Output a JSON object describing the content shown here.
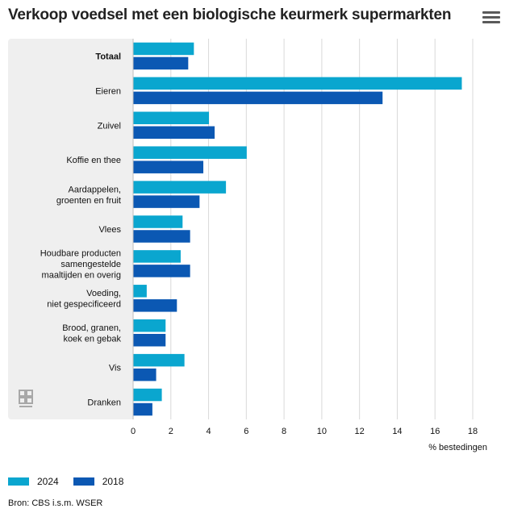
{
  "header": {
    "title": "Verkoop voedsel met een biologische keurmerk supermarkten",
    "menu_icon": "hamburger-menu-icon"
  },
  "colors": {
    "series_2024": "#0aa6cf",
    "series_2018": "#0b58b3",
    "grid": "#d9d9d9",
    "panel": "#efefef"
  },
  "chart_data": {
    "type": "bar",
    "orientation": "horizontal",
    "categories": [
      [
        "Totaal"
      ],
      [
        "Eieren"
      ],
      [
        "Zuivel"
      ],
      [
        "Koffie en thee"
      ],
      [
        "Aardappelen,",
        "groenten en fruit"
      ],
      [
        "Vlees"
      ],
      [
        "Houdbare producten",
        "samengestelde",
        "maaltijden en overig"
      ],
      [
        "Voeding,",
        "niet gespecificeerd"
      ],
      [
        "Brood, granen,",
        "koek en gebak"
      ],
      [
        "Vis"
      ],
      [
        "Dranken"
      ]
    ],
    "bold_categories": [
      0
    ],
    "series": [
      {
        "name": "2024",
        "values": [
          3.2,
          17.4,
          4.0,
          6.0,
          4.9,
          2.6,
          2.5,
          0.7,
          1.7,
          2.7,
          1.5
        ]
      },
      {
        "name": "2018",
        "values": [
          2.9,
          13.2,
          4.3,
          3.7,
          3.5,
          3.0,
          3.0,
          2.3,
          1.7,
          1.2,
          1.0
        ]
      }
    ],
    "xlim": [
      0,
      18
    ],
    "xticks": [
      0,
      2,
      4,
      6,
      8,
      10,
      12,
      14,
      16,
      18
    ],
    "xlabel": "% bestedingen",
    "legend_position": "bottom-left",
    "grid": true
  },
  "legend": {
    "items": [
      "2024",
      "2018"
    ]
  },
  "footer": {
    "source": "Bron: CBS i.s.m. WSER",
    "logo_icon": "cbs-logo-icon"
  }
}
